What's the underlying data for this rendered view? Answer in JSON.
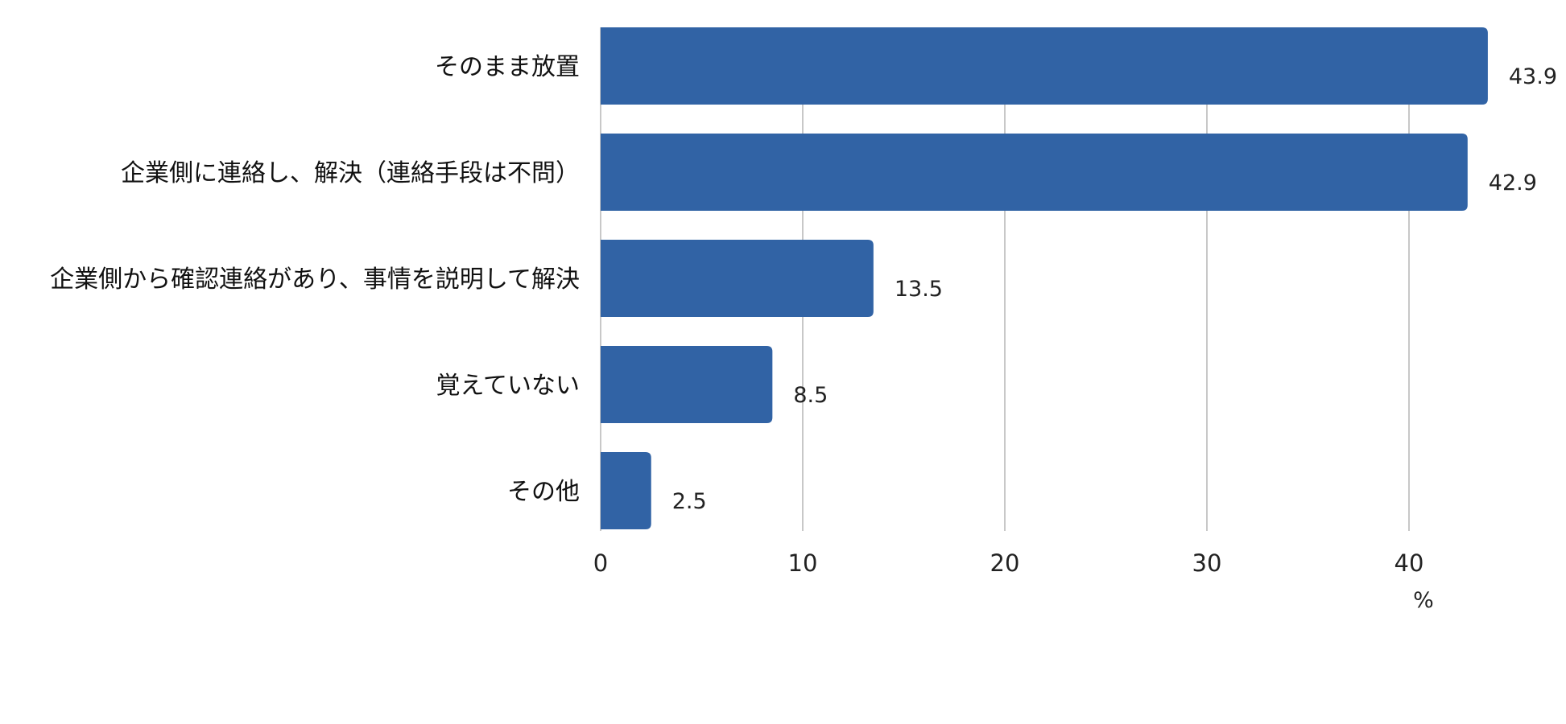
{
  "chart_data": {
    "type": "bar",
    "orientation": "horizontal",
    "categories": [
      "そのまま放置",
      "企業側に連絡し、解決（連絡手段は不問）",
      "企業側から確認連絡があり、事情を説明して解決",
      "覚えていない",
      "その他"
    ],
    "values": [
      43.9,
      42.9,
      13.5,
      8.5,
      2.5
    ],
    "value_labels": [
      "43.9",
      "42.9",
      "13.5",
      "8.5",
      "2.5"
    ],
    "xlim": [
      0,
      44
    ],
    "xticks": [
      0,
      10,
      20,
      30,
      40
    ],
    "xtick_labels": [
      "0",
      "10",
      "20",
      "30",
      "40"
    ],
    "xlabel": "%",
    "grid": true,
    "bar_color": "#3163a5",
    "grid_color": "#c8c8c8"
  }
}
